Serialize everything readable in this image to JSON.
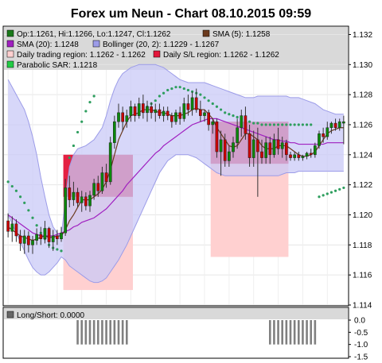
{
  "title": "Forex um Neun - Chart 08.10.2015 09:59",
  "colors": {
    "candle_up": "#0b8a0b",
    "candle_down": "#cc0000",
    "sma5": "#6b3a1e",
    "sma20": "#a020c0",
    "bollinger_fill": "#c9c9f7",
    "bollinger_line": "#9c9ce8",
    "daily_region_fill": "#ffd0d0",
    "sl_region_fill": "#e3173b",
    "sar": "#2e9e5e",
    "legend_bg": "#d9d9d9",
    "ls_bar": "#808080"
  },
  "legend": [
    {
      "label": "Op:1.1261, Hi:1.1266, Lo:1.1247, Cl:1.1262",
      "color": "#1a7a1a"
    },
    {
      "label": "SMA (5): 1.1258",
      "color": "#6b3a1e"
    },
    {
      "label": "SMA (20): 1.1248",
      "color": "#a020c0"
    },
    {
      "label": "Bollinger (20, 2): 1.1229 - 1.1267",
      "color": "#9c9ce8"
    },
    {
      "label": "Daily trading region: 1.1262 - 1.1262",
      "color": "#ffd0d0"
    },
    {
      "label": "Daily S/L region: 1.1262 - 1.1262",
      "color": "#e3173b"
    },
    {
      "label": "Parabolic SAR: 1.1218",
      "color": "#22cc44"
    }
  ],
  "longshort": {
    "label": "Long/Short: 0.0000",
    "ticks": [
      "0.0",
      "-0.5",
      "-1.0",
      "-1.5"
    ],
    "ylim": [
      -1.5,
      0.0
    ],
    "bar_value": -1.0,
    "bar_index_groups": [
      [
        17,
        29
      ],
      [
        64,
        75
      ]
    ]
  },
  "chart_data": {
    "type": "candlestick",
    "title": "Forex um Neun - Chart 08.10.2015 09:59",
    "ylim": [
      1.114,
      1.1325
    ],
    "yticks": [
      "1.132",
      "1.130",
      "1.128",
      "1.126",
      "1.124",
      "1.122",
      "1.120",
      "1.118",
      "1.116",
      "1.114"
    ],
    "grid": true,
    "candles": [
      {
        "o": 1.1196,
        "h": 1.1201,
        "l": 1.1185,
        "c": 1.1189
      },
      {
        "o": 1.1189,
        "h": 1.1199,
        "l": 1.1182,
        "c": 1.1194
      },
      {
        "o": 1.1194,
        "h": 1.1197,
        "l": 1.1182,
        "c": 1.1186
      },
      {
        "o": 1.1186,
        "h": 1.119,
        "l": 1.1176,
        "c": 1.1181
      },
      {
        "o": 1.1181,
        "h": 1.119,
        "l": 1.1174,
        "c": 1.1186
      },
      {
        "o": 1.1186,
        "h": 1.1189,
        "l": 1.1175,
        "c": 1.118
      },
      {
        "o": 1.118,
        "h": 1.1186,
        "l": 1.1174,
        "c": 1.1183
      },
      {
        "o": 1.1183,
        "h": 1.1191,
        "l": 1.118,
        "c": 1.1187
      },
      {
        "o": 1.1187,
        "h": 1.1192,
        "l": 1.118,
        "c": 1.1184
      },
      {
        "o": 1.1184,
        "h": 1.1196,
        "l": 1.1181,
        "c": 1.1191
      },
      {
        "o": 1.1191,
        "h": 1.1192,
        "l": 1.1178,
        "c": 1.1182
      },
      {
        "o": 1.1182,
        "h": 1.119,
        "l": 1.1176,
        "c": 1.1186
      },
      {
        "o": 1.1186,
        "h": 1.119,
        "l": 1.118,
        "c": 1.1184
      },
      {
        "o": 1.1184,
        "h": 1.1192,
        "l": 1.1182,
        "c": 1.1188
      },
      {
        "o": 1.1188,
        "h": 1.1224,
        "l": 1.1186,
        "c": 1.1218
      },
      {
        "o": 1.1218,
        "h": 1.1226,
        "l": 1.1205,
        "c": 1.121
      },
      {
        "o": 1.121,
        "h": 1.1222,
        "l": 1.1206,
        "c": 1.1215
      },
      {
        "o": 1.1215,
        "h": 1.1218,
        "l": 1.1205,
        "c": 1.1208
      },
      {
        "o": 1.1208,
        "h": 1.1216,
        "l": 1.1202,
        "c": 1.1212
      },
      {
        "o": 1.1212,
        "h": 1.1215,
        "l": 1.1203,
        "c": 1.1206
      },
      {
        "o": 1.1206,
        "h": 1.1216,
        "l": 1.1202,
        "c": 1.1213
      },
      {
        "o": 1.1213,
        "h": 1.1224,
        "l": 1.121,
        "c": 1.1221
      },
      {
        "o": 1.1221,
        "h": 1.1226,
        "l": 1.1212,
        "c": 1.1216
      },
      {
        "o": 1.1216,
        "h": 1.1232,
        "l": 1.1214,
        "c": 1.1228
      },
      {
        "o": 1.1228,
        "h": 1.1234,
        "l": 1.1218,
        "c": 1.1222
      },
      {
        "o": 1.1222,
        "h": 1.1252,
        "l": 1.122,
        "c": 1.1248
      },
      {
        "o": 1.1248,
        "h": 1.1266,
        "l": 1.1244,
        "c": 1.1262
      },
      {
        "o": 1.1262,
        "h": 1.1274,
        "l": 1.1258,
        "c": 1.1268
      },
      {
        "o": 1.1268,
        "h": 1.1272,
        "l": 1.1256,
        "c": 1.1262
      },
      {
        "o": 1.1262,
        "h": 1.127,
        "l": 1.1258,
        "c": 1.1266
      },
      {
        "o": 1.1266,
        "h": 1.1276,
        "l": 1.1262,
        "c": 1.1272
      },
      {
        "o": 1.1272,
        "h": 1.1274,
        "l": 1.1262,
        "c": 1.1266
      },
      {
        "o": 1.1266,
        "h": 1.1278,
        "l": 1.1264,
        "c": 1.1274
      },
      {
        "o": 1.1274,
        "h": 1.128,
        "l": 1.1264,
        "c": 1.1268
      },
      {
        "o": 1.1268,
        "h": 1.1276,
        "l": 1.1262,
        "c": 1.1272
      },
      {
        "o": 1.1272,
        "h": 1.1275,
        "l": 1.1264,
        "c": 1.1268
      },
      {
        "o": 1.1268,
        "h": 1.1274,
        "l": 1.1262,
        "c": 1.127
      },
      {
        "o": 1.127,
        "h": 1.1274,
        "l": 1.1264,
        "c": 1.1266
      },
      {
        "o": 1.1266,
        "h": 1.1272,
        "l": 1.1262,
        "c": 1.1269
      },
      {
        "o": 1.1269,
        "h": 1.1272,
        "l": 1.1263,
        "c": 1.1266
      },
      {
        "o": 1.1266,
        "h": 1.1268,
        "l": 1.1258,
        "c": 1.1262
      },
      {
        "o": 1.1262,
        "h": 1.127,
        "l": 1.126,
        "c": 1.1268
      },
      {
        "o": 1.1268,
        "h": 1.1272,
        "l": 1.126,
        "c": 1.1264
      },
      {
        "o": 1.1264,
        "h": 1.1278,
        "l": 1.1262,
        "c": 1.1274
      },
      {
        "o": 1.1274,
        "h": 1.128,
        "l": 1.1266,
        "c": 1.127
      },
      {
        "o": 1.127,
        "h": 1.1282,
        "l": 1.1266,
        "c": 1.1278
      },
      {
        "o": 1.1278,
        "h": 1.1284,
        "l": 1.1268,
        "c": 1.127
      },
      {
        "o": 1.127,
        "h": 1.1276,
        "l": 1.1262,
        "c": 1.1266
      },
      {
        "o": 1.1266,
        "h": 1.127,
        "l": 1.1262,
        "c": 1.1268
      },
      {
        "o": 1.1268,
        "h": 1.127,
        "l": 1.1256,
        "c": 1.126
      },
      {
        "o": 1.126,
        "h": 1.1264,
        "l": 1.1254,
        "c": 1.1262
      },
      {
        "o": 1.1262,
        "h": 1.1264,
        "l": 1.1238,
        "c": 1.1242
      },
      {
        "o": 1.1242,
        "h": 1.1256,
        "l": 1.1226,
        "c": 1.125
      },
      {
        "o": 1.125,
        "h": 1.1254,
        "l": 1.1232,
        "c": 1.1236
      },
      {
        "o": 1.1236,
        "h": 1.1246,
        "l": 1.1232,
        "c": 1.1242
      },
      {
        "o": 1.1242,
        "h": 1.1252,
        "l": 1.1238,
        "c": 1.1248
      },
      {
        "o": 1.1248,
        "h": 1.1264,
        "l": 1.1244,
        "c": 1.1258
      },
      {
        "o": 1.1258,
        "h": 1.127,
        "l": 1.1252,
        "c": 1.1266
      },
      {
        "o": 1.1266,
        "h": 1.1272,
        "l": 1.125,
        "c": 1.1254
      },
      {
        "o": 1.1254,
        "h": 1.126,
        "l": 1.1232,
        "c": 1.1238
      },
      {
        "o": 1.1238,
        "h": 1.1256,
        "l": 1.1232,
        "c": 1.125
      },
      {
        "o": 1.125,
        "h": 1.1258,
        "l": 1.1212,
        "c": 1.1242
      },
      {
        "o": 1.1242,
        "h": 1.125,
        "l": 1.1234,
        "c": 1.1238
      },
      {
        "o": 1.1238,
        "h": 1.1252,
        "l": 1.1234,
        "c": 1.1248
      },
      {
        "o": 1.1248,
        "h": 1.1252,
        "l": 1.1234,
        "c": 1.124
      },
      {
        "o": 1.124,
        "h": 1.1254,
        "l": 1.1238,
        "c": 1.125
      },
      {
        "o": 1.125,
        "h": 1.1258,
        "l": 1.124,
        "c": 1.1244
      },
      {
        "o": 1.1244,
        "h": 1.1252,
        "l": 1.1238,
        "c": 1.1248
      },
      {
        "o": 1.1248,
        "h": 1.125,
        "l": 1.1236,
        "c": 1.124
      },
      {
        "o": 1.124,
        "h": 1.1242,
        "l": 1.1236,
        "c": 1.1238
      },
      {
        "o": 1.1238,
        "h": 1.1242,
        "l": 1.1236,
        "c": 1.124
      },
      {
        "o": 1.124,
        "h": 1.1242,
        "l": 1.1236,
        "c": 1.1238
      },
      {
        "o": 1.1238,
        "h": 1.124,
        "l": 1.1236,
        "c": 1.1239
      },
      {
        "o": 1.1239,
        "h": 1.1242,
        "l": 1.1237,
        "c": 1.1241
      },
      {
        "o": 1.1241,
        "h": 1.1244,
        "l": 1.1238,
        "c": 1.124
      },
      {
        "o": 1.124,
        "h": 1.1248,
        "l": 1.1238,
        "c": 1.1246
      },
      {
        "o": 1.1246,
        "h": 1.1256,
        "l": 1.1244,
        "c": 1.1254
      },
      {
        "o": 1.1254,
        "h": 1.1258,
        "l": 1.1248,
        "c": 1.1252
      },
      {
        "o": 1.1252,
        "h": 1.1262,
        "l": 1.125,
        "c": 1.1258
      },
      {
        "o": 1.1258,
        "h": 1.1262,
        "l": 1.1254,
        "c": 1.1261
      },
      {
        "o": 1.1261,
        "h": 1.1264,
        "l": 1.1256,
        "c": 1.1258
      },
      {
        "o": 1.1258,
        "h": 1.1264,
        "l": 1.1256,
        "c": 1.1262
      },
      {
        "o": 1.1261,
        "h": 1.1266,
        "l": 1.1247,
        "c": 1.1262
      }
    ],
    "sma5": [
      1.1192,
      1.119,
      1.1188,
      1.1186,
      1.1185,
      1.1184,
      1.1183,
      1.1184,
      1.1185,
      1.1186,
      1.1185,
      1.1185,
      1.1186,
      1.1186,
      1.119,
      1.1196,
      1.12,
      1.1205,
      1.121,
      1.121,
      1.121,
      1.1212,
      1.1214,
      1.1217,
      1.1222,
      1.123,
      1.124,
      1.125,
      1.1256,
      1.1262,
      1.1266,
      1.1267,
      1.1268,
      1.127,
      1.127,
      1.127,
      1.1269,
      1.1268,
      1.1268,
      1.1267,
      1.1266,
      1.1266,
      1.1266,
      1.1267,
      1.1268,
      1.127,
      1.1271,
      1.127,
      1.127,
      1.1267,
      1.1264,
      1.1258,
      1.1254,
      1.125,
      1.1246,
      1.1245,
      1.1246,
      1.125,
      1.1254,
      1.1254,
      1.1252,
      1.125,
      1.1246,
      1.1244,
      1.1244,
      1.1244,
      1.1246,
      1.1246,
      1.1246,
      1.1244,
      1.1242,
      1.124,
      1.1239,
      1.1239,
      1.124,
      1.1242,
      1.1246,
      1.125,
      1.1254,
      1.1256,
      1.1257,
      1.1258,
      1.1258
    ],
    "sma20": [
      1.12,
      1.1198,
      1.1196,
      1.1194,
      1.1192,
      1.119,
      1.1188,
      1.1187,
      1.1186,
      1.1186,
      1.1186,
      1.1186,
      1.1187,
      1.1188,
      1.1189,
      1.119,
      1.1192,
      1.1193,
      1.1195,
      1.1196,
      1.1197,
      1.1198,
      1.12,
      1.1202,
      1.1204,
      1.1207,
      1.121,
      1.1213,
      1.1216,
      1.122,
      1.1223,
      1.1226,
      1.1229,
      1.1232,
      1.1235,
      1.1238,
      1.1241,
      1.1243,
      1.1246,
      1.1248,
      1.125,
      1.1252,
      1.1254,
      1.1256,
      1.1258,
      1.126,
      1.1261,
      1.1262,
      1.1263,
      1.1264,
      1.1264,
      1.1264,
      1.1263,
      1.1262,
      1.1261,
      1.126,
      1.1259,
      1.1258,
      1.1257,
      1.1256,
      1.1255,
      1.1254,
      1.1253,
      1.1252,
      1.1251,
      1.125,
      1.125,
      1.1249,
      1.1249,
      1.1248,
      1.1248,
      1.1247,
      1.1247,
      1.1247,
      1.1247,
      1.1247,
      1.1247,
      1.1247,
      1.1248,
      1.1248,
      1.1248,
      1.1248,
      1.1248
    ],
    "bb_upper": [
      1.129,
      1.1285,
      1.128,
      1.1275,
      1.127,
      1.1262,
      1.1252,
      1.124,
      1.1225,
      1.1212,
      1.12,
      1.1192,
      1.1188,
      1.1186,
      1.121,
      1.1232,
      1.124,
      1.1244,
      1.1245,
      1.1246,
      1.1248,
      1.125,
      1.1254,
      1.1258,
      1.1266,
      1.1276,
      1.1284,
      1.129,
      1.1294,
      1.1296,
      1.1298,
      1.1299,
      1.13,
      1.13,
      1.13,
      1.13,
      1.13,
      1.1299,
      1.1298,
      1.1296,
      1.1294,
      1.1292,
      1.129,
      1.1289,
      1.1288,
      1.1288,
      1.1288,
      1.1288,
      1.1288,
      1.1287,
      1.1286,
      1.1285,
      1.1284,
      1.1283,
      1.1282,
      1.1281,
      1.128,
      1.1279,
      1.1278,
      1.1278,
      1.1278,
      1.1279,
      1.1279,
      1.1279,
      1.1279,
      1.1279,
      1.1279,
      1.1279,
      1.1279,
      1.1278,
      1.1278,
      1.1278,
      1.1277,
      1.1276,
      1.1275,
      1.1274,
      1.1272,
      1.127,
      1.1269,
      1.1268,
      1.1267,
      1.1267,
      1.1267
    ],
    "bb_lower": [
      1.12,
      1.1194,
      1.1188,
      1.1182,
      1.1176,
      1.117,
      1.1165,
      1.1162,
      1.116,
      1.116,
      1.1162,
      1.1165,
      1.1168,
      1.1172,
      1.117,
      1.1166,
      1.1164,
      1.1162,
      1.116,
      1.1158,
      1.1156,
      1.1155,
      1.1155,
      1.1156,
      1.1158,
      1.1162,
      1.1166,
      1.117,
      1.1175,
      1.118,
      1.1186,
      1.1192,
      1.1198,
      1.1204,
      1.121,
      1.1216,
      1.1222,
      1.1228,
      1.1232,
      1.1236,
      1.1238,
      1.124,
      1.124,
      1.124,
      1.124,
      1.1239,
      1.1238,
      1.1236,
      1.1234,
      1.1232,
      1.123,
      1.1228,
      1.1227,
      1.1226,
      1.1226,
      1.1226,
      1.1226,
      1.1226,
      1.1226,
      1.1226,
      1.1226,
      1.1226,
      1.1226,
      1.1226,
      1.1226,
      1.1226,
      1.1226,
      1.1227,
      1.1228,
      1.1228,
      1.1228,
      1.1229,
      1.1229,
      1.1229,
      1.1229,
      1.1229,
      1.1229,
      1.1229,
      1.1229,
      1.1229,
      1.1229,
      1.1229,
      1.1229
    ],
    "sar_segments": [
      {
        "from": 0,
        "step": 1,
        "values": [
          1.1222,
          1.1219,
          1.1216,
          1.1212,
          1.1208,
          1.1203,
          1.1198,
          1.1193,
          1.1188,
          1.1184,
          1.118,
          1.1178,
          1.1177,
          1.1176
        ]
      },
      {
        "from": 15,
        "step": 1,
        "values": [
          1.1238,
          1.1246,
          1.1255,
          1.1262,
          1.1269,
          1.1275,
          1.1279
        ]
      },
      {
        "from": 34,
        "step": 1,
        "values": [
          1.1272,
          1.1274,
          1.1276,
          1.1279,
          1.1281,
          1.1283,
          1.1284,
          1.1285,
          1.1285,
          1.1284,
          1.1283,
          1.1282,
          1.1281,
          1.128,
          1.1278,
          1.1276,
          1.1274,
          1.1272,
          1.127,
          1.1268,
          1.1267,
          1.1266,
          1.1265,
          1.1264,
          1.1263,
          1.1262,
          1.1261,
          1.1261,
          1.126,
          1.126,
          1.126,
          1.126,
          1.126,
          1.126,
          1.126,
          1.126,
          1.126,
          1.126,
          1.126,
          1.126,
          1.126
        ]
      },
      {
        "from": 76,
        "step": 1,
        "values": [
          1.1212,
          1.1213,
          1.1214,
          1.1215,
          1.1216,
          1.1217,
          1.1218
        ]
      }
    ],
    "regions": [
      {
        "kind": "daily_trading",
        "from": 14,
        "to": 30,
        "y0": 1.115,
        "y1": 1.124
      },
      {
        "kind": "daily_sl",
        "from": 14,
        "to": 30,
        "y0": 1.1212,
        "y1": 1.124
      },
      {
        "kind": "daily_trading",
        "from": 50,
        "to": 68,
        "y0": 1.1172,
        "y1": 1.1262
      },
      {
        "kind": "daily_sl",
        "from": 50,
        "to": 68,
        "y0": 1.1234,
        "y1": 1.1262
      }
    ]
  }
}
